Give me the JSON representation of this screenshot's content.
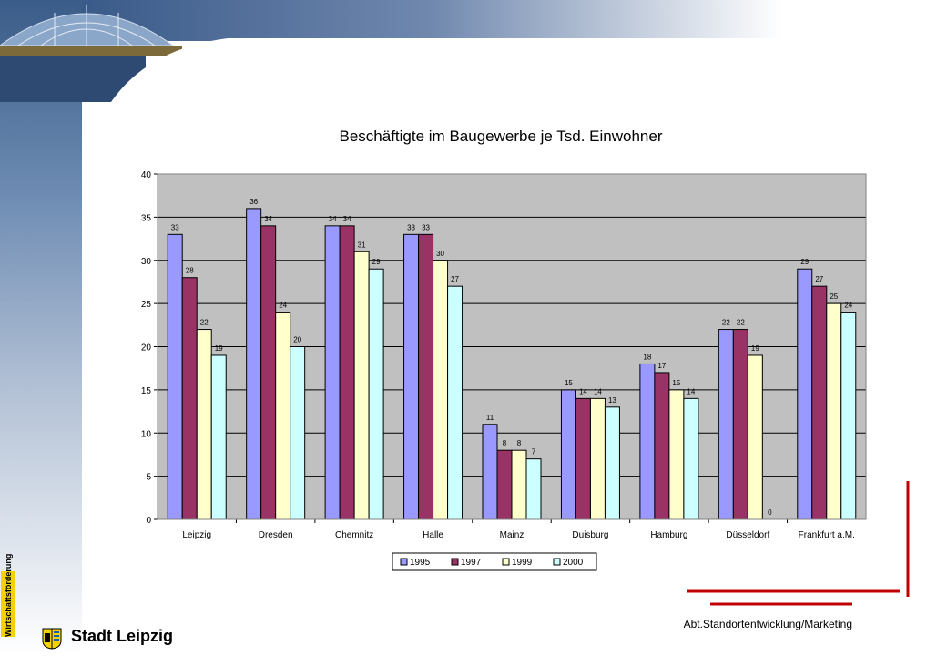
{
  "footer": {
    "department": "Abt.Standortentwicklung/Marketing",
    "brand": "Stadt Leipzig",
    "side_tag": "Wirtschaftsförderung"
  },
  "colors": {
    "plot_bg": "#c0c0c0",
    "accent_red": "#c00000"
  },
  "chart_data": {
    "type": "bar",
    "title": "Beschäftigte im Baugewerbe je Tsd. Einwohner",
    "xlabel": "",
    "ylabel": "",
    "ylim": [
      0,
      40
    ],
    "yticks": [
      0,
      5,
      10,
      15,
      20,
      25,
      30,
      35,
      40
    ],
    "grid": true,
    "legend_position": "bottom",
    "categories": [
      "Leipzig",
      "Dresden",
      "Chemnitz",
      "Halle",
      "Mainz",
      "Duisburg",
      "Hamburg",
      "Düsseldorf",
      "Frankfurt a.M."
    ],
    "series": [
      {
        "name": "1995",
        "color": "#9999ff",
        "values": [
          33,
          36,
          34,
          33,
          11,
          15,
          18,
          22,
          29
        ]
      },
      {
        "name": "1997",
        "color": "#993366",
        "values": [
          28,
          34,
          34,
          33,
          8,
          14,
          17,
          22,
          27
        ]
      },
      {
        "name": "1999",
        "color": "#ffffcc",
        "values": [
          22,
          24,
          31,
          30,
          8,
          14,
          15,
          19,
          25
        ]
      },
      {
        "name": "2000",
        "color": "#ccffff",
        "values": [
          19,
          20,
          29,
          27,
          7,
          13,
          14,
          0,
          24
        ]
      }
    ]
  }
}
